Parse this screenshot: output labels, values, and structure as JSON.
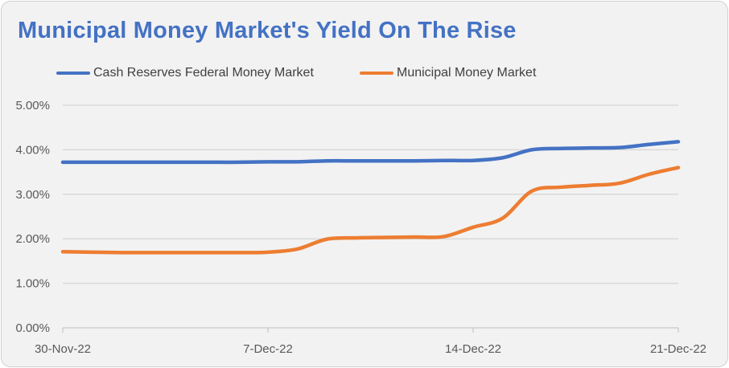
{
  "chart_data": {
    "type": "line",
    "title": "Municipal Money Market's Yield On The Rise",
    "xlabel": "",
    "ylabel": "",
    "x_start": "2022-11-30",
    "x_tick_labels": [
      "30-Nov-22",
      "7-Dec-22",
      "14-Dec-22",
      "21-Dec-22"
    ],
    "x_tick_days": [
      0,
      7,
      14,
      21
    ],
    "y_tick_labels": [
      "0.00%",
      "1.00%",
      "2.00%",
      "3.00%",
      "4.00%",
      "5.00%"
    ],
    "ylim": [
      0,
      5
    ],
    "grid": true,
    "legend_position": "top",
    "x": [
      "30-Nov-22",
      "1-Dec-22",
      "2-Dec-22",
      "3-Dec-22",
      "4-Dec-22",
      "5-Dec-22",
      "6-Dec-22",
      "7-Dec-22",
      "8-Dec-22",
      "9-Dec-22",
      "10-Dec-22",
      "11-Dec-22",
      "12-Dec-22",
      "13-Dec-22",
      "14-Dec-22",
      "15-Dec-22",
      "16-Dec-22",
      "17-Dec-22",
      "18-Dec-22",
      "19-Dec-22",
      "20-Dec-22",
      "21-Dec-22"
    ],
    "series": [
      {
        "name": "Cash Reserves Federal Money Market",
        "color": "#4472c4",
        "values": [
          3.72,
          3.72,
          3.72,
          3.72,
          3.72,
          3.72,
          3.72,
          3.73,
          3.73,
          3.75,
          3.75,
          3.75,
          3.75,
          3.76,
          3.76,
          3.82,
          4.0,
          4.03,
          4.04,
          4.05,
          4.12,
          4.18
        ]
      },
      {
        "name": "Municipal Money Market",
        "color": "#ed7d31",
        "values": [
          1.71,
          1.7,
          1.69,
          1.69,
          1.69,
          1.69,
          1.69,
          1.7,
          1.77,
          1.99,
          2.02,
          2.03,
          2.04,
          2.05,
          2.26,
          2.46,
          3.07,
          3.16,
          3.2,
          3.25,
          3.45,
          3.6
        ]
      }
    ]
  }
}
